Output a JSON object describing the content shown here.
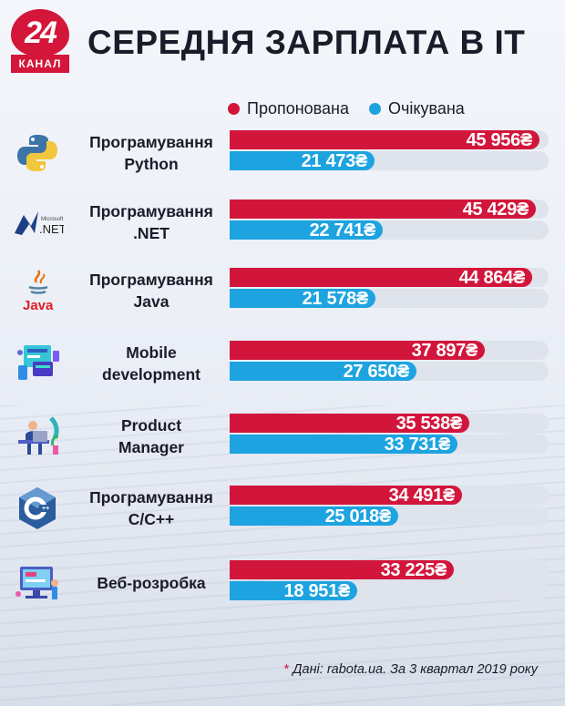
{
  "brand": {
    "number": "24",
    "word": "КАНАЛ",
    "color": "#d3163a"
  },
  "header": {
    "title": "СЕРЕДНЯ ЗАРПЛАТА В ІТ"
  },
  "legend": {
    "offered": "Пропонована",
    "expected": "Очікувана"
  },
  "colors": {
    "offered": "#d2163b",
    "expected": "#1da3e0"
  },
  "chart_data": {
    "type": "bar",
    "orientation": "horizontal",
    "title": "СЕРЕДНЯ ЗАРПЛАТА В ІТ",
    "currency": "₴",
    "xlim": [
      0,
      50000
    ],
    "categories": [
      "Програмування Python",
      "Програмування .NET",
      "Програмування Java",
      "Mobile development",
      "Product Manager",
      "Програмування C/C++",
      "Веб-розробка"
    ],
    "label_lines": [
      [
        "Програмування",
        "Python"
      ],
      [
        "Програмування",
        ".NET"
      ],
      [
        "Програмування",
        "Java"
      ],
      [
        "Mobile",
        "development"
      ],
      [
        "Product",
        "Manager"
      ],
      [
        "Програмування",
        "C/C++"
      ],
      [
        "Веб-розробка",
        ""
      ]
    ],
    "icons": [
      "python-icon",
      "dotnet-icon",
      "java-icon",
      "mobile-dev-icon",
      "product-manager-icon",
      "cpp-icon",
      "web-dev-icon"
    ],
    "series": [
      {
        "name": "Пропонована",
        "values": [
          45956,
          45429,
          44864,
          37897,
          35538,
          34491,
          33225
        ],
        "labels": [
          "45 956",
          "45 429",
          "44 864",
          "37 897",
          "35 538",
          "34 491",
          "33 225"
        ]
      },
      {
        "name": "Очікувана",
        "values": [
          21473,
          22741,
          21578,
          27650,
          33731,
          25018,
          18951
        ],
        "labels": [
          "21 473",
          "22 741",
          "21 578",
          "27 650",
          "33 731",
          "25 018",
          "18 951"
        ]
      }
    ]
  },
  "footer": {
    "star": "*",
    "source": "Дані: rabota.ua. За 3 квартал 2019 року"
  }
}
